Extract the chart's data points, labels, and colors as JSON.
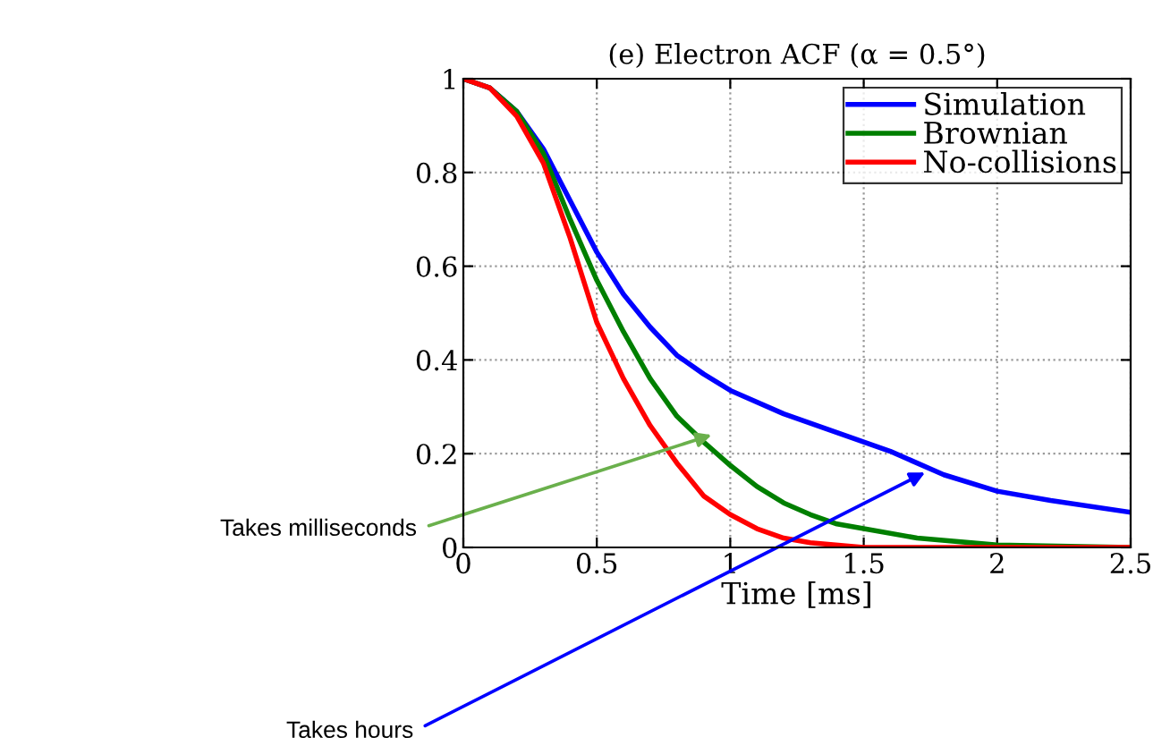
{
  "chart_data": {
    "type": "line",
    "title": "(e) Electron ACF (α = 0.5°)",
    "xlabel": "Time [ms]",
    "xlim": [
      0,
      2.5
    ],
    "ylim": [
      0,
      1
    ],
    "xticks": [
      0,
      0.5,
      1,
      1.5,
      2,
      2.5
    ],
    "yticks": [
      0,
      0.2,
      0.4,
      0.6,
      0.8,
      1
    ],
    "grid": true,
    "legend": "top right",
    "line_style": "solid",
    "marker": "none",
    "series": [
      {
        "name": "Simulation",
        "color": "#0000ff",
        "x": [
          0,
          0.1,
          0.2,
          0.3,
          0.4,
          0.5,
          0.6,
          0.7,
          0.8,
          0.9,
          1.0,
          1.2,
          1.4,
          1.6,
          1.8,
          2.0,
          2.2,
          2.5
        ],
        "values": [
          1,
          0.98,
          0.93,
          0.85,
          0.74,
          0.63,
          0.54,
          0.47,
          0.41,
          0.37,
          0.335,
          0.285,
          0.245,
          0.205,
          0.155,
          0.12,
          0.1,
          0.075
        ]
      },
      {
        "name": "Brownian",
        "color": "#007f00",
        "x": [
          0,
          0.1,
          0.2,
          0.3,
          0.4,
          0.5,
          0.6,
          0.7,
          0.8,
          0.9,
          1.0,
          1.1,
          1.2,
          1.3,
          1.4,
          1.5,
          1.7,
          2.0,
          2.5
        ],
        "values": [
          1,
          0.98,
          0.93,
          0.84,
          0.7,
          0.57,
          0.46,
          0.36,
          0.28,
          0.225,
          0.175,
          0.13,
          0.095,
          0.07,
          0.05,
          0.04,
          0.02,
          0.005,
          0
        ]
      },
      {
        "name": "No-collisions",
        "color": "#ff0000",
        "x": [
          0,
          0.1,
          0.2,
          0.3,
          0.4,
          0.5,
          0.6,
          0.7,
          0.8,
          0.9,
          1.0,
          1.1,
          1.2,
          1.3,
          1.5,
          2.5
        ],
        "values": [
          1,
          0.98,
          0.92,
          0.82,
          0.66,
          0.48,
          0.36,
          0.26,
          0.18,
          0.11,
          0.07,
          0.04,
          0.02,
          0.01,
          0,
          0
        ]
      }
    ],
    "annotations": [
      {
        "text": "Takes milliseconds",
        "x": 0.93,
        "y": 0.24
      },
      {
        "text": "Takes hours",
        "x": 1.73,
        "y": 0.16
      }
    ]
  }
}
